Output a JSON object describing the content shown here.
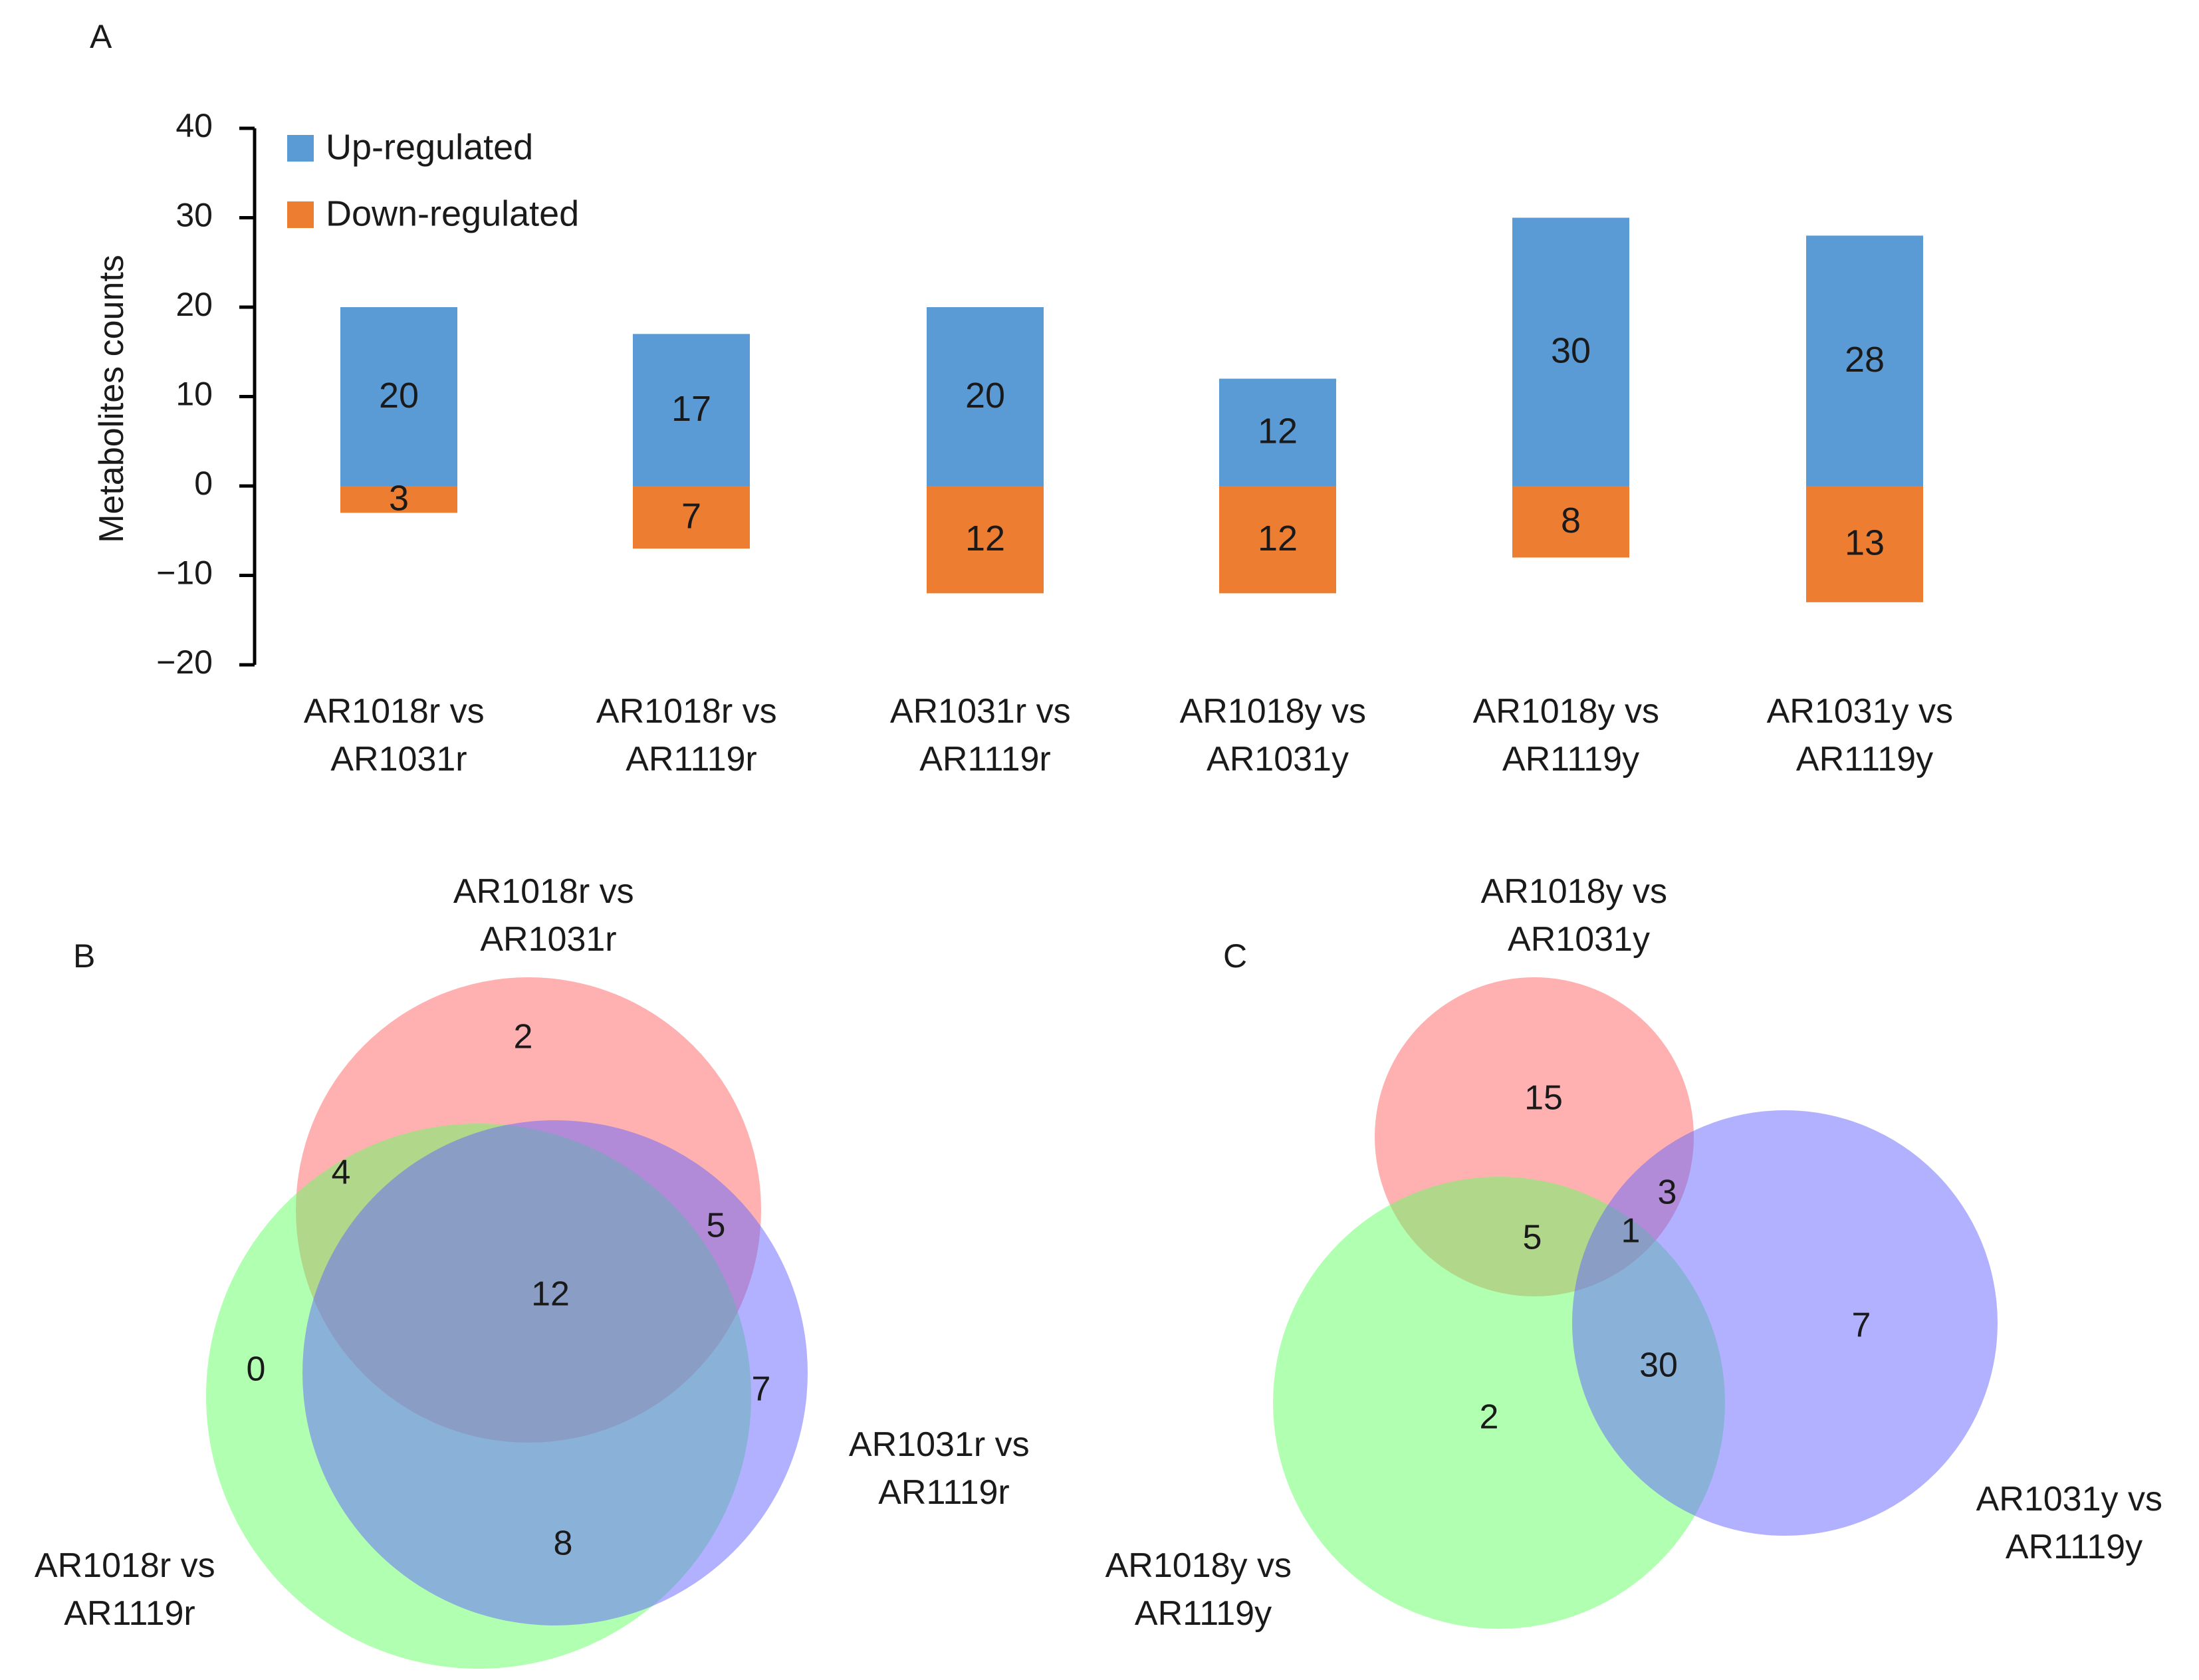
{
  "colors": {
    "up": "#5b9bd5",
    "down": "#ed7d31",
    "venn_red": "#ff6464",
    "venn_green": "#64ff64",
    "venn_blue": "#6464ff"
  },
  "panels": {
    "a": "A",
    "b": "B",
    "c": "C"
  },
  "chart_data": [
    {
      "type": "bar",
      "stacked": true,
      "ylabel": "Metabolites counts",
      "ylim": [
        -20,
        40
      ],
      "yticks": [
        40,
        30,
        20,
        10,
        0,
        -10,
        -20
      ],
      "ytick_labels": [
        "40",
        "30",
        "20",
        "10",
        "0",
        "−10",
        "−20"
      ],
      "legend": [
        "Up-regulated",
        "Down-regulated"
      ],
      "categories": [
        [
          "AR1018r vs",
          "AR1031r"
        ],
        [
          "AR1018r vs",
          "AR1119r"
        ],
        [
          "AR1031r vs",
          "AR1119r"
        ],
        [
          "AR1018y vs",
          "AR1031y"
        ],
        [
          "AR1018y vs",
          "AR1119y"
        ],
        [
          "AR1031y vs",
          "AR1119y"
        ]
      ],
      "series": [
        {
          "name": "Up-regulated",
          "values": [
            20,
            17,
            20,
            12,
            30,
            28
          ]
        },
        {
          "name": "Down-regulated",
          "values": [
            -3,
            -7,
            -12,
            -12,
            -8,
            -13
          ]
        }
      ],
      "data_labels": {
        "up": [
          "20",
          "17",
          "20",
          "12",
          "30",
          "28"
        ],
        "down": [
          "3",
          "7",
          "12",
          "12",
          "8",
          "13"
        ]
      }
    },
    {
      "type": "venn",
      "sets": [
        [
          "AR1018r vs",
          "AR1031r"
        ],
        [
          "AR1018r vs",
          "AR1119r"
        ],
        [
          "AR1031r vs",
          "AR1119r"
        ]
      ],
      "counts": [
        "2",
        "4",
        "5",
        "12",
        "0",
        "7",
        "8"
      ]
    },
    {
      "type": "venn",
      "sets": [
        [
          "AR1018y vs",
          "AR1031y"
        ],
        [
          "AR1018y vs",
          "AR1119y"
        ],
        [
          "AR1031y vs",
          "AR1119y"
        ]
      ],
      "counts": [
        "15",
        "3",
        "5",
        "1",
        "30",
        "7",
        "2"
      ]
    }
  ]
}
